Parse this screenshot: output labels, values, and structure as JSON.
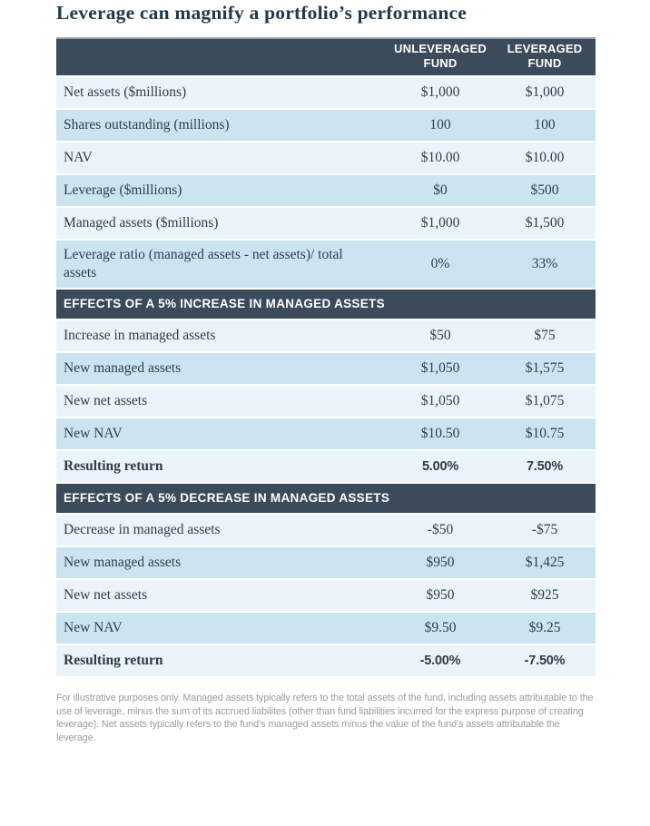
{
  "page": {
    "title": "Leverage can magnify a portfolio’s performance",
    "footnote": "For illustrative purposes only. Managed assets typically refers to the total assets of the fund, including assets attributable to the use of leverage, minus the sum of its accrued liabilites (other than fund liabilities incurred for the express purpose of creating leverage). Net assets typically refers to the fund’s managed assets minus the value of the fund’s assets attributable the leverage."
  },
  "colors": {
    "section_bar": "#3c4b5b",
    "row_light": "#ebf4f8",
    "row_dark": "#cbe5f0",
    "title_text": "#24384a",
    "body_text": "#2e3d4c",
    "footnote_text": "#9c9c9c",
    "header_top_border": "#98a2ac"
  },
  "chart_data": {
    "type": "table",
    "title": "Leverage can magnify a portfolio’s performance",
    "column_headers": [
      {
        "label": "UNLEVERAGED FUND"
      },
      {
        "label": "LEVERAGED FUND"
      }
    ],
    "sections": [
      {
        "header": "",
        "rows": [
          {
            "label": "Net assets ($millions)",
            "unleveraged": "$1,000",
            "leveraged": "$1,000"
          },
          {
            "label": "Shares outstanding (millions)",
            "unleveraged": "100",
            "leveraged": "100"
          },
          {
            "label": "NAV",
            "unleveraged": "$10.00",
            "leveraged": "$10.00"
          },
          {
            "label": "Leverage ($millions)",
            "unleveraged": "$0",
            "leveraged": "$500"
          },
          {
            "label": "Managed assets ($millions)",
            "unleveraged": "$1,000",
            "leveraged": "$1,500"
          },
          {
            "label": "Leverage ratio (managed assets - net assets)/ total assets",
            "unleveraged": "0%",
            "leveraged": "33%"
          }
        ]
      },
      {
        "header": "EFFECTS OF A 5% INCREASE IN MANAGED ASSETS",
        "rows": [
          {
            "label": "Increase in managed assets",
            "unleveraged": "$50",
            "leveraged": "$75"
          },
          {
            "label": "New managed assets",
            "unleveraged": "$1,050",
            "leveraged": "$1,575"
          },
          {
            "label": "New net assets",
            "unleveraged": "$1,050",
            "leveraged": "$1,075"
          },
          {
            "label": "New NAV",
            "unleveraged": "$10.50",
            "leveraged": "$10.75"
          },
          {
            "label": "Resulting return",
            "unleveraged": "5.00%",
            "leveraged": "7.50%",
            "emphasis": true
          }
        ]
      },
      {
        "header": "EFFECTS OF A 5% DECREASE IN MANAGED ASSETS",
        "rows": [
          {
            "label": "Decrease in managed assets",
            "unleveraged": "-$50",
            "leveraged": "-$75"
          },
          {
            "label": "New managed assets",
            "unleveraged": "$950",
            "leveraged": "$1,425"
          },
          {
            "label": "New net assets",
            "unleveraged": "$950",
            "leveraged": "$925"
          },
          {
            "label": "New NAV",
            "unleveraged": "$9.50",
            "leveraged": "$9.25"
          },
          {
            "label": "Resulting return",
            "unleveraged": "-5.00%",
            "leveraged": "-7.50%",
            "emphasis": true
          }
        ]
      }
    ]
  }
}
